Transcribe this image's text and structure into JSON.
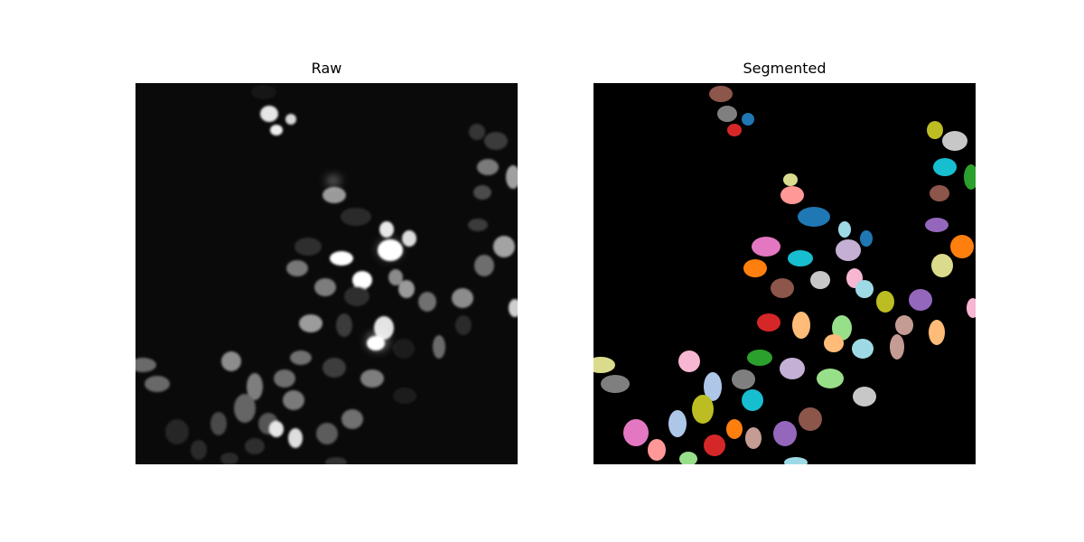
{
  "figure": {
    "panels": [
      {
        "title": "Raw",
        "background": "#0a0a0a"
      },
      {
        "title": "Segmented",
        "background": "#000000"
      }
    ]
  }
}
